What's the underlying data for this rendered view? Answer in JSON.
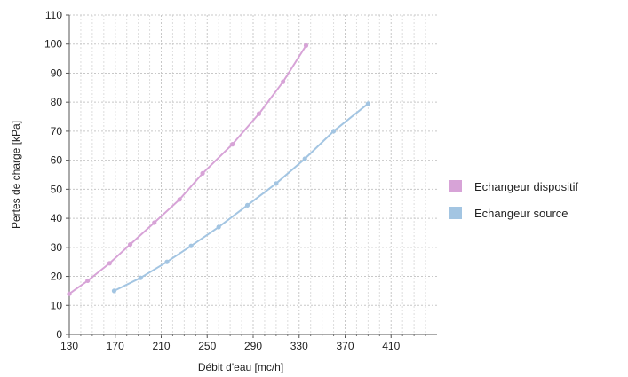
{
  "chart_data": {
    "type": "line",
    "title": "",
    "xlabel": "Débit d'eau [mc/h]",
    "ylabel": "Pertes de charge [kPa]",
    "xlim": [
      130,
      450
    ],
    "ylim": [
      0,
      110
    ],
    "x_ticks": [
      "130",
      "170",
      "210",
      "250",
      "290",
      "330",
      "370",
      "410"
    ],
    "y_ticks": [
      "0",
      "10",
      "20",
      "30",
      "40",
      "50",
      "60",
      "70",
      "80",
      "90",
      "100",
      "110"
    ],
    "grid": true,
    "legend_position": "right",
    "series": [
      {
        "name": "Echangeur dispositif",
        "color": "#d7a3d7",
        "points": [
          [
            130,
            14
          ],
          [
            146,
            18.5
          ],
          [
            165,
            24.5
          ],
          [
            183,
            31
          ],
          [
            204,
            38.5
          ],
          [
            226,
            46.5
          ],
          [
            246,
            55.5
          ],
          [
            272,
            65.5
          ],
          [
            295,
            76
          ],
          [
            316,
            87
          ],
          [
            336,
            99.5
          ]
        ]
      },
      {
        "name": "Echangeur source",
        "color": "#a3c5e2",
        "points": [
          [
            169,
            15
          ],
          [
            192,
            19.5
          ],
          [
            215,
            25
          ],
          [
            236,
            30.5
          ],
          [
            260,
            37
          ],
          [
            285,
            44.5
          ],
          [
            310,
            52
          ],
          [
            335,
            60.5
          ],
          [
            360,
            70
          ],
          [
            390,
            79.5
          ]
        ]
      }
    ]
  }
}
